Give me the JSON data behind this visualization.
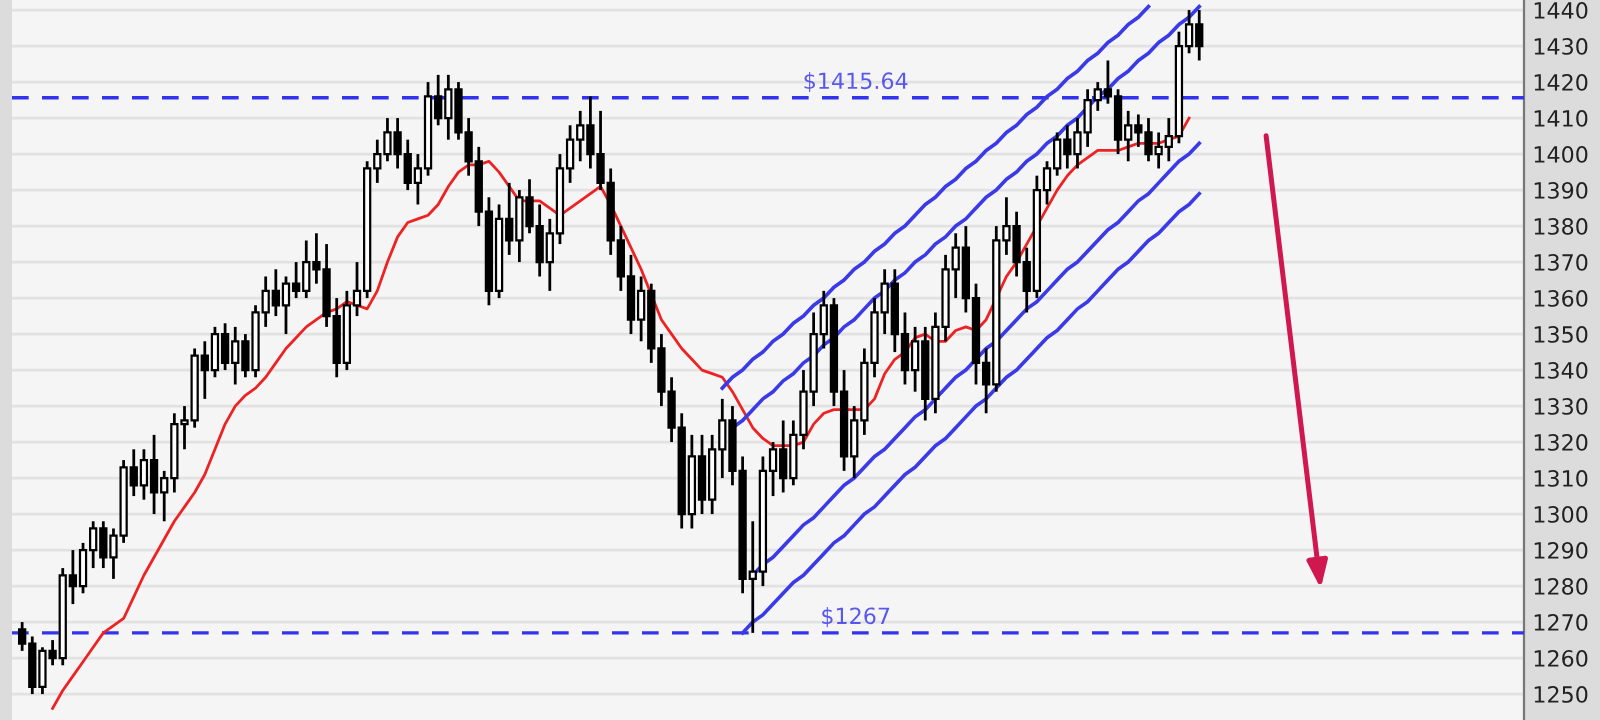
{
  "chart_data": {
    "type": "candlestick",
    "categories": [
      null,
      null,
      null,
      null,
      null,
      null,
      null,
      null,
      null,
      null,
      null,
      null,
      null,
      null,
      null,
      null,
      null,
      null,
      null,
      null,
      null,
      null,
      null,
      null,
      null,
      null,
      null,
      null,
      null,
      null,
      null,
      null,
      null,
      null,
      null,
      null,
      null,
      null,
      null,
      null,
      null,
      null,
      null,
      null,
      null,
      null,
      null,
      null,
      null,
      null,
      null,
      null,
      null,
      null,
      null,
      null,
      null,
      null,
      null,
      null,
      null,
      null,
      null,
      null,
      null,
      null,
      null,
      null,
      null,
      null,
      null,
      null,
      null,
      null,
      null,
      null,
      null,
      null,
      null,
      null,
      null,
      null,
      null,
      null,
      null,
      null,
      null,
      null,
      null,
      null,
      null,
      null,
      null,
      null,
      null,
      null,
      null,
      null,
      null,
      null,
      null,
      null,
      null,
      null,
      null,
      null,
      null,
      null,
      null,
      null,
      null,
      null,
      null,
      null,
      null,
      null,
      null
    ],
    "ohlc": [
      [
        1268,
        1270,
        1262,
        1264
      ],
      [
        1264,
        1266,
        1250,
        1252
      ],
      [
        1252,
        1263,
        1250,
        1262
      ],
      [
        1262,
        1265,
        1258,
        1260
      ],
      [
        1260,
        1285,
        1258,
        1283
      ],
      [
        1283,
        1290,
        1275,
        1280
      ],
      [
        1280,
        1292,
        1278,
        1290
      ],
      [
        1290,
        1298,
        1285,
        1296
      ],
      [
        1296,
        1298,
        1285,
        1288
      ],
      [
        1288,
        1296,
        1282,
        1294
      ],
      [
        1294,
        1315,
        1292,
        1313
      ],
      [
        1313,
        1318,
        1305,
        1308
      ],
      [
        1308,
        1318,
        1304,
        1315
      ],
      [
        1315,
        1322,
        1300,
        1306
      ],
      [
        1306,
        1312,
        1298,
        1310
      ],
      [
        1310,
        1328,
        1306,
        1325
      ],
      [
        1325,
        1330,
        1318,
        1326
      ],
      [
        1326,
        1346,
        1324,
        1344
      ],
      [
        1344,
        1348,
        1332,
        1340
      ],
      [
        1340,
        1352,
        1338,
        1350
      ],
      [
        1350,
        1353,
        1340,
        1342
      ],
      [
        1342,
        1352,
        1336,
        1348
      ],
      [
        1348,
        1350,
        1338,
        1340
      ],
      [
        1340,
        1358,
        1338,
        1356
      ],
      [
        1356,
        1366,
        1352,
        1362
      ],
      [
        1362,
        1368,
        1355,
        1358
      ],
      [
        1358,
        1366,
        1350,
        1364
      ],
      [
        1364,
        1370,
        1360,
        1362
      ],
      [
        1362,
        1376,
        1360,
        1370
      ],
      [
        1370,
        1378,
        1364,
        1368
      ],
      [
        1368,
        1375,
        1352,
        1355
      ],
      [
        1355,
        1360,
        1338,
        1342
      ],
      [
        1342,
        1362,
        1340,
        1358
      ],
      [
        1358,
        1370,
        1355,
        1362
      ],
      [
        1362,
        1398,
        1360,
        1396
      ],
      [
        1396,
        1404,
        1392,
        1400
      ],
      [
        1400,
        1410,
        1398,
        1406
      ],
      [
        1406,
        1410,
        1396,
        1400
      ],
      [
        1400,
        1404,
        1390,
        1392
      ],
      [
        1392,
        1400,
        1386,
        1396
      ],
      [
        1396,
        1420,
        1394,
        1416
      ],
      [
        1416,
        1422,
        1408,
        1410
      ],
      [
        1410,
        1422,
        1404,
        1418
      ],
      [
        1418,
        1420,
        1404,
        1406
      ],
      [
        1406,
        1410,
        1394,
        1398
      ],
      [
        1398,
        1402,
        1380,
        1384
      ],
      [
        1384,
        1388,
        1358,
        1362
      ],
      [
        1362,
        1386,
        1360,
        1382
      ],
      [
        1382,
        1392,
        1372,
        1376
      ],
      [
        1376,
        1390,
        1370,
        1388
      ],
      [
        1388,
        1393,
        1378,
        1380
      ],
      [
        1380,
        1386,
        1366,
        1370
      ],
      [
        1370,
        1382,
        1362,
        1378
      ],
      [
        1378,
        1400,
        1375,
        1396
      ],
      [
        1396,
        1408,
        1392,
        1404
      ],
      [
        1404,
        1412,
        1398,
        1408
      ],
      [
        1408,
        1416,
        1396,
        1400
      ],
      [
        1400,
        1412,
        1390,
        1392
      ],
      [
        1392,
        1396,
        1372,
        1376
      ],
      [
        1376,
        1380,
        1362,
        1366
      ],
      [
        1366,
        1372,
        1350,
        1354
      ],
      [
        1354,
        1366,
        1348,
        1362
      ],
      [
        1362,
        1364,
        1342,
        1346
      ],
      [
        1346,
        1350,
        1330,
        1334
      ],
      [
        1334,
        1338,
        1320,
        1324
      ],
      [
        1324,
        1328,
        1296,
        1300
      ],
      [
        1300,
        1322,
        1296,
        1316
      ],
      [
        1316,
        1322,
        1300,
        1304
      ],
      [
        1304,
        1322,
        1300,
        1318
      ],
      [
        1318,
        1332,
        1310,
        1326
      ],
      [
        1326,
        1330,
        1308,
        1312
      ],
      [
        1312,
        1316,
        1278,
        1282
      ],
      [
        1282,
        1298,
        1267,
        1284
      ],
      [
        1284,
        1316,
        1280,
        1312
      ],
      [
        1312,
        1320,
        1305,
        1318
      ],
      [
        1318,
        1326,
        1306,
        1310
      ],
      [
        1310,
        1326,
        1308,
        1322
      ],
      [
        1322,
        1340,
        1318,
        1334
      ],
      [
        1334,
        1356,
        1330,
        1350
      ],
      [
        1350,
        1362,
        1346,
        1358
      ],
      [
        1358,
        1360,
        1330,
        1334
      ],
      [
        1334,
        1340,
        1312,
        1316
      ],
      [
        1316,
        1330,
        1310,
        1326
      ],
      [
        1326,
        1346,
        1322,
        1342
      ],
      [
        1342,
        1360,
        1338,
        1356
      ],
      [
        1356,
        1368,
        1350,
        1364
      ],
      [
        1364,
        1368,
        1345,
        1350
      ],
      [
        1350,
        1356,
        1336,
        1340
      ],
      [
        1340,
        1352,
        1334,
        1348
      ],
      [
        1348,
        1352,
        1326,
        1332
      ],
      [
        1332,
        1356,
        1328,
        1352
      ],
      [
        1352,
        1372,
        1348,
        1368
      ],
      [
        1368,
        1378,
        1360,
        1374
      ],
      [
        1374,
        1380,
        1356,
        1360
      ],
      [
        1360,
        1364,
        1336,
        1342
      ],
      [
        1342,
        1346,
        1328,
        1336
      ],
      [
        1336,
        1380,
        1334,
        1376
      ],
      [
        1376,
        1388,
        1372,
        1380
      ],
      [
        1380,
        1384,
        1366,
        1370
      ],
      [
        1370,
        1374,
        1356,
        1362
      ],
      [
        1362,
        1394,
        1360,
        1390
      ],
      [
        1390,
        1398,
        1386,
        1396
      ],
      [
        1396,
        1406,
        1394,
        1404
      ],
      [
        1404,
        1408,
        1396,
        1400
      ],
      [
        1400,
        1410,
        1396,
        1406
      ],
      [
        1406,
        1418,
        1402,
        1415
      ],
      [
        1415,
        1420,
        1412,
        1418
      ],
      [
        1418,
        1426,
        1414,
        1416
      ],
      [
        1416,
        1418,
        1400,
        1404
      ],
      [
        1404,
        1412,
        1398,
        1408
      ],
      [
        1408,
        1411,
        1402,
        1406
      ],
      [
        1406,
        1410,
        1398,
        1400
      ],
      [
        1400,
        1406,
        1396,
        1402
      ],
      [
        1402,
        1410,
        1398,
        1405
      ],
      [
        1405,
        1434,
        1403,
        1430
      ],
      [
        1430,
        1440,
        1428,
        1436
      ],
      [
        1436,
        1440,
        1426,
        1430
      ]
    ],
    "series": [
      {
        "type": "line",
        "color": "#ee2222",
        "values": [
          null,
          null,
          null,
          1246,
          1251,
          1255,
          1259,
          1263,
          1267,
          1269,
          1271,
          1277,
          1283,
          1288,
          1293,
          1298,
          1302,
          1306,
          1311,
          1318,
          1325,
          1330,
          1333,
          1335,
          1338,
          1342,
          1346,
          1349,
          1352,
          1354,
          1356,
          1357,
          1359,
          1358,
          1357,
          1362,
          1370,
          1377,
          1381,
          1382,
          1383,
          1386,
          1391,
          1395,
          1397,
          1397,
          1398,
          1395,
          1391,
          1387,
          1387,
          1387,
          1385,
          1383,
          1385,
          1387,
          1389,
          1391,
          1386,
          1380,
          1374,
          1368,
          1361,
          1354,
          1350,
          1346,
          1343,
          1340,
          1339,
          1338,
          1334,
          1329,
          1324,
          1321,
          1319,
          1319,
          1319,
          1320,
          1325,
          1328,
          1329,
          1329,
          1329,
          1329,
          1332,
          1339,
          1343,
          1345,
          1349,
          1350,
          1348,
          1348,
          1351,
          1352,
          1351,
          1354,
          1360,
          1366,
          1370,
          1375,
          1380,
          1385,
          1390,
          1394,
          1397,
          1399,
          1401,
          1401,
          1401,
          1402,
          1403,
          1403,
          1403,
          1404,
          1405,
          1410,
          null
        ]
      },
      {
        "type": "line",
        "color": "#3a3ae8",
        "values": [
          null,
          null,
          null,
          null,
          null,
          null,
          null,
          null,
          null,
          null,
          null,
          null,
          null,
          null,
          null,
          null,
          null,
          null,
          null,
          null,
          null,
          null,
          null,
          null,
          null,
          null,
          null,
          null,
          null,
          null,
          null,
          null,
          null,
          null,
          null,
          null,
          null,
          null,
          null,
          null,
          null,
          null,
          null,
          null,
          null,
          null,
          null,
          null,
          null,
          null,
          null,
          null,
          null,
          null,
          null,
          null,
          null,
          null,
          null,
          null,
          null,
          null,
          null,
          null,
          null,
          null,
          null,
          null,
          null,
          1335,
          1338,
          1340,
          1343,
          1345,
          1348,
          1350,
          1353,
          1355,
          1358,
          1360,
          1363,
          1365,
          1368,
          1370,
          1373,
          1375,
          1378,
          1380,
          1383,
          1386,
          1388,
          1391,
          1393,
          1396,
          1398,
          1401,
          1403,
          1406,
          1408,
          1411,
          1413,
          1416,
          1418,
          1421,
          1423,
          1426,
          1428,
          1431,
          1433,
          1436,
          1438,
          1441,
          null,
          null,
          null,
          null,
          null
        ]
      },
      {
        "type": "line",
        "color": "#3a3ae8",
        "values": [
          null,
          null,
          null,
          null,
          null,
          null,
          null,
          null,
          null,
          null,
          null,
          null,
          null,
          null,
          null,
          null,
          null,
          null,
          null,
          null,
          null,
          null,
          null,
          null,
          null,
          null,
          null,
          null,
          null,
          null,
          null,
          null,
          null,
          null,
          null,
          null,
          null,
          null,
          null,
          null,
          null,
          null,
          null,
          null,
          null,
          null,
          null,
          null,
          null,
          null,
          null,
          null,
          null,
          null,
          null,
          null,
          null,
          null,
          null,
          null,
          null,
          null,
          null,
          null,
          null,
          null,
          null,
          null,
          null,
          null,
          1324,
          1326,
          1329,
          1332,
          1334,
          1337,
          1339,
          1342,
          1344,
          1347,
          1349,
          1352,
          1354,
          1357,
          1360,
          1362,
          1365,
          1367,
          1370,
          1372,
          1375,
          1377,
          1380,
          1382,
          1385,
          1388,
          1390,
          1393,
          1395,
          1398,
          1400,
          1403,
          1405,
          1408,
          1410,
          1413,
          1416,
          1418,
          1421,
          1423,
          1426,
          1428,
          1431,
          1433,
          1436,
          1438,
          1441
        ]
      },
      {
        "type": "line",
        "color": "#3a3ae8",
        "values": [
          null,
          null,
          null,
          null,
          null,
          null,
          null,
          null,
          null,
          null,
          null,
          null,
          null,
          null,
          null,
          null,
          null,
          null,
          null,
          null,
          null,
          null,
          null,
          null,
          null,
          null,
          null,
          null,
          null,
          null,
          null,
          null,
          null,
          null,
          null,
          null,
          null,
          null,
          null,
          null,
          null,
          null,
          null,
          null,
          null,
          null,
          null,
          null,
          null,
          null,
          null,
          null,
          null,
          null,
          null,
          null,
          null,
          null,
          null,
          null,
          null,
          null,
          null,
          null,
          null,
          null,
          null,
          null,
          null,
          null,
          null,
          null,
          1283,
          1286,
          1288,
          1291,
          1294,
          1297,
          1299,
          1302,
          1305,
          1308,
          1310,
          1313,
          1316,
          1318,
          1321,
          1324,
          1327,
          1329,
          1332,
          1335,
          1338,
          1340,
          1343,
          1346,
          1348,
          1351,
          1354,
          1357,
          1359,
          1362,
          1365,
          1368,
          1370,
          1373,
          1376,
          1379,
          1381,
          1384,
          1387,
          1389,
          1392,
          1395,
          1398,
          1400,
          1403
        ]
      },
      {
        "type": "line",
        "color": "#3a3ae8",
        "values": [
          null,
          null,
          null,
          null,
          null,
          null,
          null,
          null,
          null,
          null,
          null,
          null,
          null,
          null,
          null,
          null,
          null,
          null,
          null,
          null,
          null,
          null,
          null,
          null,
          null,
          null,
          null,
          null,
          null,
          null,
          null,
          null,
          null,
          null,
          null,
          null,
          null,
          null,
          null,
          null,
          null,
          null,
          null,
          null,
          null,
          null,
          null,
          null,
          null,
          null,
          null,
          null,
          null,
          null,
          null,
          null,
          null,
          null,
          null,
          null,
          null,
          null,
          null,
          null,
          null,
          null,
          null,
          null,
          null,
          null,
          null,
          1267,
          1270,
          1272,
          1275,
          1278,
          1281,
          1283,
          1286,
          1289,
          1292,
          1294,
          1297,
          1300,
          1302,
          1305,
          1308,
          1311,
          1313,
          1316,
          1319,
          1321,
          1324,
          1327,
          1330,
          1332,
          1335,
          1338,
          1340,
          1343,
          1346,
          1349,
          1351,
          1354,
          1357,
          1359,
          1362,
          1365,
          1368,
          1370,
          1373,
          1376,
          1378,
          1381,
          1384,
          1386,
          1389
        ]
      }
    ],
    "ref_lines": [
      {
        "axis": "y",
        "value": 1415.64,
        "label": "$1415.64",
        "color": "#3333ee",
        "line_style": "dashed"
      },
      {
        "axis": "y",
        "value": 1267,
        "label": "$1267",
        "color": "#3333ee",
        "line_style": "dashed"
      }
    ],
    "ylim": [
      1242.8,
      1442.8
    ],
    "yticks": [
      1250,
      1260,
      1270,
      1280,
      1290,
      1300,
      1310,
      1320,
      1330,
      1340,
      1350,
      1360,
      1370,
      1380,
      1390,
      1400,
      1410,
      1420,
      1430,
      1440
    ],
    "tick_labels": "y",
    "grid": "y"
  }
}
